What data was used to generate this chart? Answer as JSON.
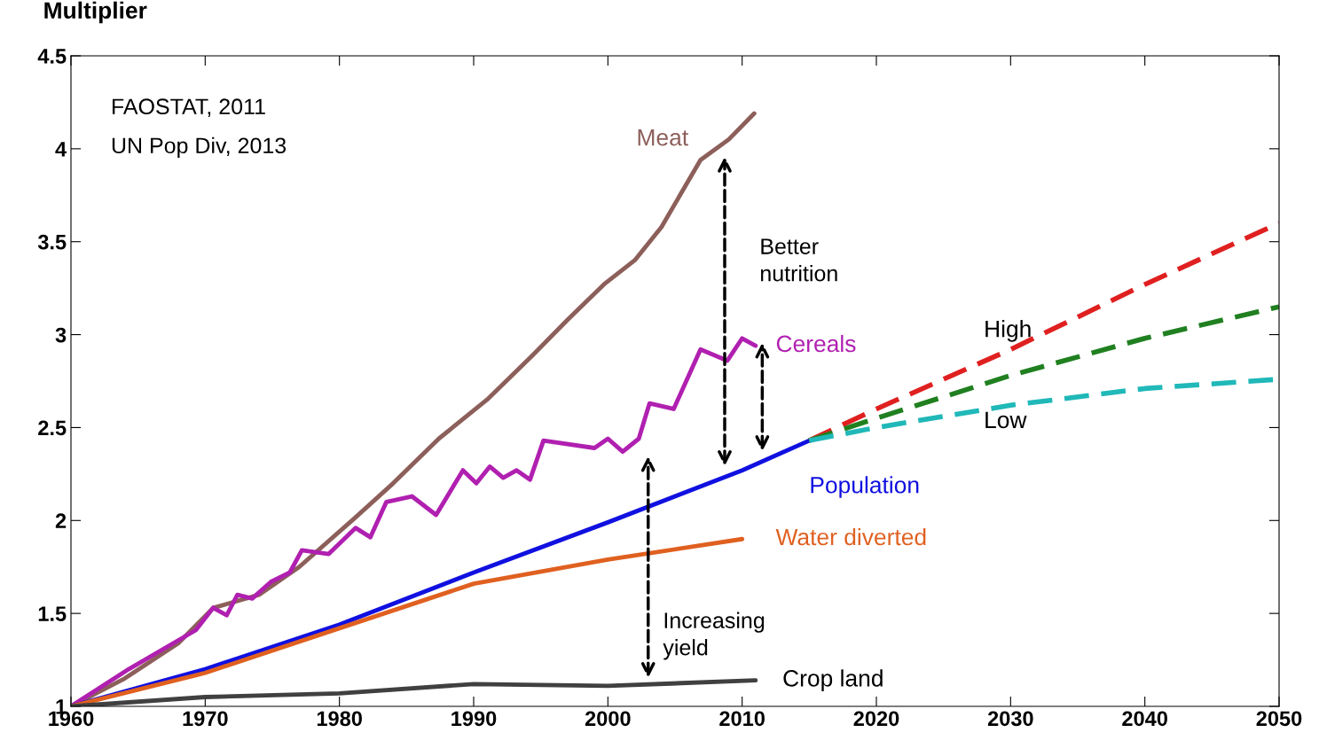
{
  "chart_data": {
    "type": "line",
    "ylabel": "Multiplier",
    "xlim": [
      1960,
      2050
    ],
    "ylim": [
      1,
      4.5
    ],
    "xticks": [
      1960,
      1970,
      1980,
      1990,
      2000,
      2010,
      2020,
      2030,
      2040,
      2050
    ],
    "yticks": [
      1,
      1.5,
      2,
      2.5,
      3,
      3.5,
      4,
      4.5
    ],
    "grid": false,
    "legend": false,
    "marker": "none",
    "series": [
      {
        "name": "Meat",
        "color": "#8c5f5a",
        "x": [
          1960,
          1964,
          1968,
          1970.6,
          1974,
          1977,
          1981.1,
          1984,
          1987.4,
          1991,
          1994.4,
          1997,
          1999.7,
          2002,
          2004,
          2006.9,
          2009,
          2010.9
        ],
        "values": [
          1.0,
          1.15,
          1.34,
          1.53,
          1.6,
          1.75,
          2.01,
          2.2,
          2.44,
          2.65,
          2.89,
          3.08,
          3.27,
          3.4,
          3.58,
          3.94,
          4.05,
          4.19
        ]
      },
      {
        "name": "Cereals",
        "color": "#b020b0",
        "x": [
          1960,
          1964.3,
          1969.3,
          1970.6,
          1971.6,
          1972.4,
          1973.5,
          1974.9,
          1976.3,
          1977.2,
          1979.2,
          1981.2,
          1982.3,
          1983.5,
          1985.4,
          1987.2,
          1989.2,
          1990.2,
          1991.2,
          1992.2,
          1993.2,
          1994.2,
          1995.2,
          1999,
          2000,
          2001.1,
          2002.3,
          2003.1,
          2004.9,
          2006.9,
          2008.9,
          2010,
          2011
        ],
        "values": [
          1.0,
          1.2,
          1.41,
          1.53,
          1.49,
          1.6,
          1.58,
          1.67,
          1.72,
          1.84,
          1.82,
          1.96,
          1.91,
          2.1,
          2.13,
          2.03,
          2.27,
          2.2,
          2.29,
          2.23,
          2.27,
          2.22,
          2.43,
          2.39,
          2.44,
          2.37,
          2.44,
          2.63,
          2.6,
          2.92,
          2.86,
          2.98,
          2.94
        ]
      },
      {
        "name": "Population",
        "color": "#1010e0",
        "x": [
          1960,
          1970,
          1980,
          1990,
          2000,
          2010,
          2015
        ],
        "values": [
          1.0,
          1.2,
          1.44,
          1.72,
          1.99,
          2.27,
          2.43
        ]
      },
      {
        "name": "Water diverted",
        "color": "#e06020",
        "x": [
          1960,
          1970,
          1980,
          1990,
          2000,
          2010
        ],
        "values": [
          1.0,
          1.18,
          1.42,
          1.66,
          1.79,
          1.9
        ]
      },
      {
        "name": "Crop land",
        "color": "#404040",
        "x": [
          1960,
          1970,
          1980,
          1990,
          2000,
          2011
        ],
        "values": [
          1.0,
          1.05,
          1.07,
          1.12,
          1.11,
          1.14
        ]
      },
      {
        "name": "High",
        "color": "#e02020",
        "line_style": "dashed",
        "x": [
          2015,
          2020,
          2030,
          2040,
          2050
        ],
        "values": [
          2.43,
          2.6,
          2.92,
          3.27,
          3.6
        ]
      },
      {
        "color": "#208020",
        "line_style": "dashed",
        "x": [
          2015,
          2020,
          2030,
          2040,
          2050
        ],
        "values": [
          2.43,
          2.55,
          2.78,
          2.98,
          3.15
        ]
      },
      {
        "name": "Low",
        "color": "#20b8b8",
        "line_style": "dashed",
        "x": [
          2015,
          2020,
          2030,
          2040,
          2050
        ],
        "values": [
          2.43,
          2.5,
          2.62,
          2.71,
          2.76
        ]
      }
    ],
    "annotations": [
      "FAOSTAT, 2011",
      "UN Pop Div, 2013",
      "Better\nnutrition",
      "Increasing\nyield"
    ]
  }
}
